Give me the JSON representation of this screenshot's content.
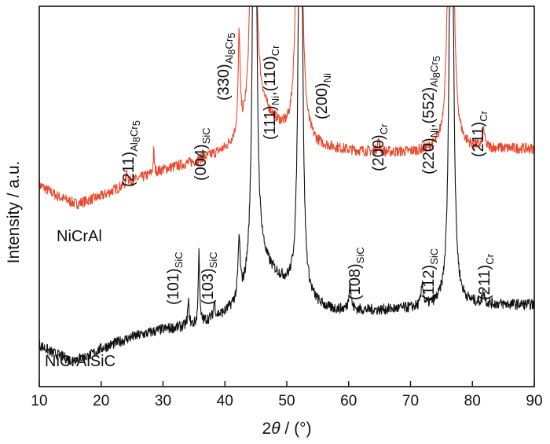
{
  "chart_data": {
    "type": "line",
    "title": "",
    "xlabel": {
      "prefix": "2",
      "theta": "θ",
      "suffix": " / (°)"
    },
    "ylabel": "Intensity / a.u.",
    "xlim": [
      10,
      90
    ],
    "xticks": [
      10,
      20,
      30,
      40,
      50,
      60,
      70,
      80,
      90
    ],
    "grid": false,
    "series": [
      {
        "name": "NiCrAl",
        "color": "#e8492c",
        "baseline": [
          [
            10,
            0.53
          ],
          [
            13,
            0.5
          ],
          [
            16,
            0.48
          ],
          [
            20,
            0.5
          ],
          [
            25,
            0.54
          ],
          [
            30,
            0.57
          ],
          [
            35,
            0.59
          ],
          [
            40,
            0.62
          ],
          [
            43,
            0.66
          ],
          [
            46,
            0.72
          ],
          [
            50,
            0.66
          ],
          [
            55,
            0.63
          ],
          [
            60,
            0.62
          ],
          [
            65,
            0.615
          ],
          [
            70,
            0.615
          ],
          [
            75,
            0.62
          ],
          [
            80,
            0.625
          ],
          [
            85,
            0.625
          ],
          [
            90,
            0.625
          ]
        ],
        "peaks": [
          {
            "x": 24.2,
            "h": 0.035,
            "w": 0.15
          },
          {
            "x": 28.5,
            "h": 0.06,
            "w": 0.1
          },
          {
            "x": 42.3,
            "h": 0.26,
            "w": 0.18
          },
          {
            "x": 44.6,
            "h": 2.0,
            "w": 0.28
          },
          {
            "x": 52.0,
            "h": 2.0,
            "w": 0.3
          },
          {
            "x": 64.8,
            "h": 0.03,
            "w": 0.2
          },
          {
            "x": 76.5,
            "h": 2.0,
            "w": 0.3
          },
          {
            "x": 81.8,
            "h": 0.05,
            "w": 0.2
          }
        ]
      },
      {
        "name": "NiCrAlSiC",
        "color": "#111111",
        "baseline": [
          [
            10,
            0.11
          ],
          [
            12,
            0.09
          ],
          [
            15,
            0.07
          ],
          [
            18,
            0.08
          ],
          [
            20,
            0.1
          ],
          [
            25,
            0.13
          ],
          [
            30,
            0.15
          ],
          [
            35,
            0.16
          ],
          [
            40,
            0.19
          ],
          [
            43,
            0.23
          ],
          [
            46,
            0.32
          ],
          [
            50,
            0.26
          ],
          [
            53,
            0.22
          ],
          [
            57,
            0.2
          ],
          [
            60,
            0.2
          ],
          [
            65,
            0.2
          ],
          [
            70,
            0.205
          ],
          [
            75,
            0.21
          ],
          [
            80,
            0.215
          ],
          [
            85,
            0.215
          ],
          [
            90,
            0.215
          ]
        ],
        "peaks": [
          {
            "x": 34.1,
            "h": 0.06,
            "w": 0.15
          },
          {
            "x": 35.8,
            "h": 0.2,
            "w": 0.12
          },
          {
            "x": 38.3,
            "h": 0.04,
            "w": 0.15
          },
          {
            "x": 42.3,
            "h": 0.15,
            "w": 0.2
          },
          {
            "x": 44.8,
            "h": 1.75,
            "w": 0.3
          },
          {
            "x": 52.2,
            "h": 1.75,
            "w": 0.3
          },
          {
            "x": 60.2,
            "h": 0.07,
            "w": 0.2
          },
          {
            "x": 71.9,
            "h": 0.06,
            "w": 0.2
          },
          {
            "x": 76.6,
            "h": 1.8,
            "w": 0.3
          },
          {
            "x": 81.8,
            "h": 0.03,
            "w": 0.2
          }
        ]
      }
    ],
    "annotations": [
      {
        "id": "nicral-211-al8cr5",
        "main": "(211)",
        "sub": "Al",
        "sub2": "8",
        "sub3": "Cr",
        "sub4": "5"
      },
      {
        "id": "nicral-004-sic",
        "main": "(004)",
        "sub": "SiC"
      },
      {
        "id": "nicral-330-al8cr5",
        "main": "(330)",
        "sub": "Al",
        "sub2": "8",
        "sub3": "Cr",
        "sub4": "5"
      },
      {
        "id": "nicral-111-110",
        "main": "(111)",
        "sub": "Ni",
        "main2": ",(110)",
        "sub3": "Cr"
      },
      {
        "id": "nicral-200-ni",
        "main": "(200)",
        "sub": "Ni"
      },
      {
        "id": "nicral-200-cr",
        "main": "(200)",
        "sub": "Cr"
      },
      {
        "id": "nicral-220-552",
        "main": "(220)",
        "sub": "Ni",
        "main2": ",(552)",
        "sub3": "Al",
        "sub4": "8",
        "sub5": "Cr",
        "sub6": "5"
      },
      {
        "id": "nicral-211-cr",
        "main": "(211)",
        "sub": "Cr"
      },
      {
        "id": "sic-101",
        "main": "(101)",
        "sub": "SiC"
      },
      {
        "id": "sic-103",
        "main": "(103)",
        "sub": "SiC"
      },
      {
        "id": "sic-108",
        "main": "(108)",
        "sub": "SiC"
      },
      {
        "id": "sic-112",
        "main": "(112)",
        "sub": "SiC"
      },
      {
        "id": "sic-211-cr",
        "main": "(211)",
        "sub": "Cr"
      }
    ]
  }
}
